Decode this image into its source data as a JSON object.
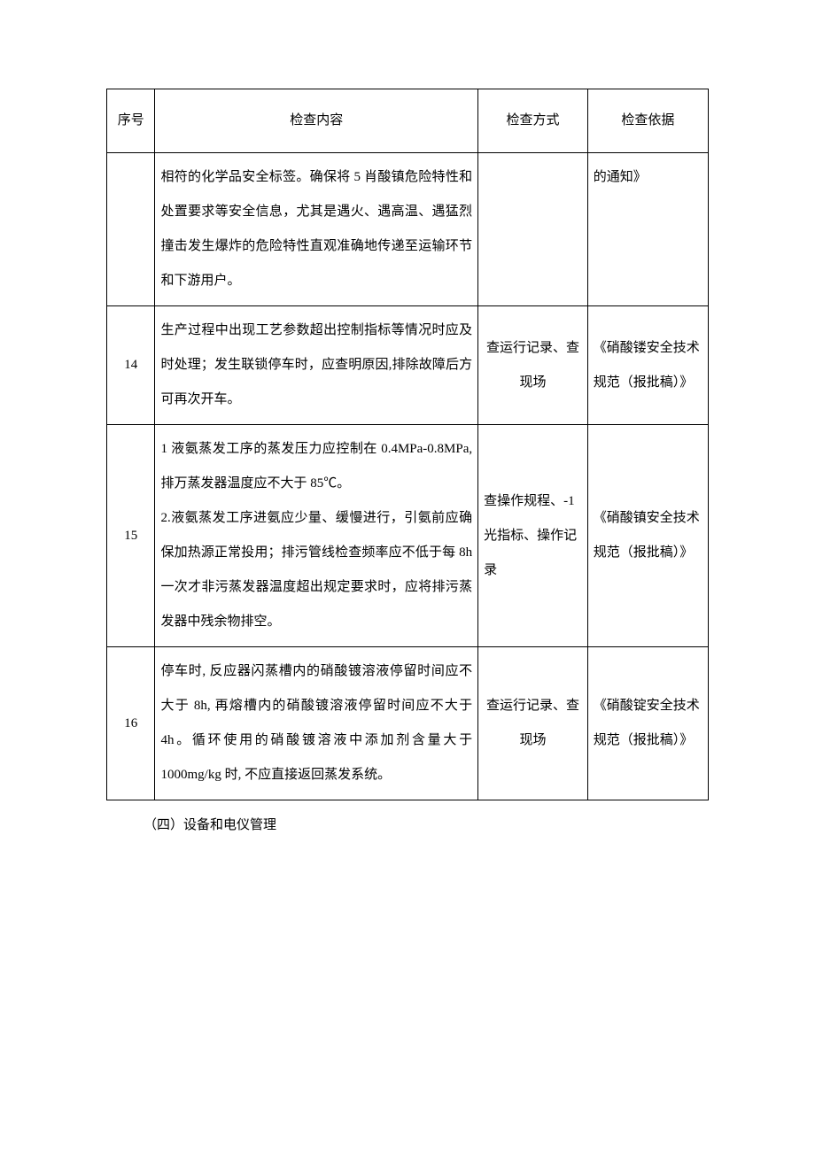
{
  "table": {
    "headers": {
      "seq": "序号",
      "content": "检查内容",
      "method": "检查方式",
      "basis": "检查依据"
    },
    "rows": [
      {
        "seq": "",
        "content": "相符的化学品安全标签。确保将 5 肖酸镇危险特性和处置要求等安全信息，尤其是遇火、遇高温、遇猛烈撞击发生爆炸的危险特性直观准确地传递至运输环节和下游用户。",
        "method": "",
        "basis": "的通知》"
      },
      {
        "seq": "14",
        "content": "生产过程中出现工艺参数超出控制指标等情况时应及时处理；发生联锁停车时，应查明原因,排除故障后方可再次开车。",
        "method": "查运行记录、查现场",
        "basis": "《硝酸镂安全技术规范（报批稿）》"
      },
      {
        "seq": "15",
        "content": "1 液氨蒸发工序的蒸发压力应控制在 0.4MPa-0.8MPa, 排万蒸发器温度应不大于 85℃。\n2.液氨蒸发工序进氨应少量、缓慢进行，引氨前应确保加热源正常投用；排污管线检查频率应不低于每 8h 一次才非污蒸发器温度超出规定要求时，应将排污蒸发器中残余物排空。",
        "method": "查操作规程、-1 光指标、操作记录",
        "basis": "《硝酸镇安全技术规范（报批稿）》"
      },
      {
        "seq": "16",
        "content": "停车时, 反应器闪蒸槽内的硝酸镀溶液停留时间应不大于 8h, 再熔槽内的硝酸镀溶液停留时间应不大于 4h。循环使用的硝酸镀溶液中添加剂含量大于 1000mg/kg 时, 不应直接返回蒸发系统。",
        "method": "查运行记录、查现场",
        "basis": "《硝酸锭安全技术规范（报批稿）》"
      }
    ]
  },
  "section_label": "（四）设备和电仪管理",
  "colors": {
    "text": "#000000",
    "border": "#000000",
    "background": "#ffffff"
  },
  "typography": {
    "body_fontsize": 15,
    "line_height": 2.6,
    "font_family": "SimSun"
  },
  "layout": {
    "col_widths": {
      "seq": 52,
      "content": 348,
      "method": 118,
      "basis": 130
    }
  }
}
